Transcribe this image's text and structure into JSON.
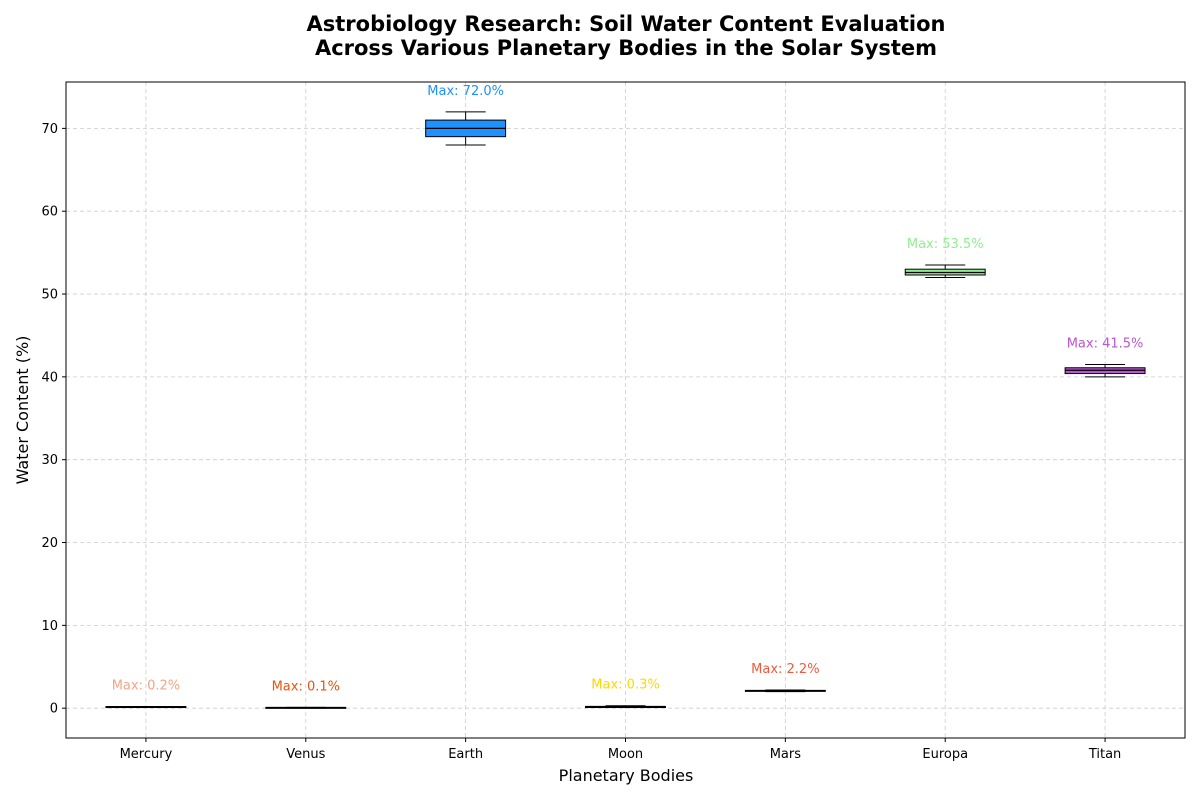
{
  "chart_data": {
    "type": "box",
    "title_lines": [
      "Astrobiology Research: Soil Water Content Evaluation",
      "Across Various Planetary Bodies in the Solar System"
    ],
    "xlabel": "Planetary Bodies",
    "ylabel": "Water Content (%)",
    "ylim": [
      -3.6,
      75.6
    ],
    "yticks": [
      0,
      10,
      20,
      30,
      40,
      50,
      60,
      70
    ],
    "grid": true,
    "categories": [
      "Mercury",
      "Venus",
      "Earth",
      "Moon",
      "Mars",
      "Europa",
      "Titan"
    ],
    "boxes": [
      {
        "name": "Mercury",
        "min": 0.1,
        "q1": 0.1,
        "median": 0.15,
        "q3": 0.2,
        "max": 0.2,
        "color": "#F4A582",
        "max_label": "Max: 0.2%"
      },
      {
        "name": "Venus",
        "min": 0.0,
        "q1": 0.0,
        "median": 0.05,
        "q3": 0.1,
        "max": 0.1,
        "color": "#E6550D",
        "max_label": "Max: 0.1%"
      },
      {
        "name": "Earth",
        "min": 68.0,
        "q1": 69.0,
        "median": 70.0,
        "q3": 71.0,
        "max": 72.0,
        "color": "#1E90FF",
        "max_label": "Max: 72.0%"
      },
      {
        "name": "Moon",
        "min": 0.1,
        "q1": 0.1,
        "median": 0.2,
        "q3": 0.2,
        "max": 0.3,
        "color": "#FFD700",
        "max_label": "Max: 0.3%"
      },
      {
        "name": "Mars",
        "min": 2.0,
        "q1": 2.05,
        "median": 2.1,
        "q3": 2.15,
        "max": 2.2,
        "color": "#F05A3C",
        "max_label": "Max: 2.2%"
      },
      {
        "name": "Europa",
        "min": 52.0,
        "q1": 52.3,
        "median": 52.6,
        "q3": 53.0,
        "max": 53.5,
        "color": "#90EE90",
        "max_label": "Max: 53.5%"
      },
      {
        "name": "Titan",
        "min": 40.0,
        "q1": 40.4,
        "median": 40.8,
        "q3": 41.1,
        "max": 41.5,
        "color": "#BA55D3",
        "max_label": "Max: 41.5%"
      }
    ]
  }
}
